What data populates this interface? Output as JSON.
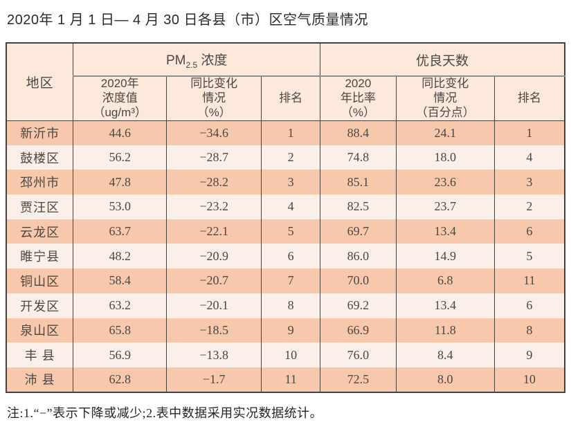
{
  "title": "2020年 1 月 1 日— 4 月 30 日各县（市）区空气质量情况",
  "note": "注:1.“−”表示下降或减少;2.表中数据采用实况数据统计。",
  "colors": {
    "row_odd": "#f7c8ac",
    "row_even": "#fbefe9",
    "header_bg": "#fce9dc",
    "border_dark": "#45403b",
    "border_gray": "#8d8d8d",
    "text_dark": "#4c4643"
  },
  "table": {
    "region_header": "地区",
    "group1": {
      "prefix": "PM",
      "sub": "2.5",
      "suffix": " 浓度"
    },
    "group2": "优良天数",
    "subheaders": {
      "pm_value": "2020年\n浓度值\n（ug/m³）",
      "pm_change": "同比变化\n情况\n（%）",
      "pm_rank": "排名",
      "days_ratio": "2020\n年比率\n（%）",
      "days_change": "同比变化\n情况\n（百分点）",
      "days_rank": "排名"
    },
    "rows": [
      {
        "region": "新沂市",
        "pm_value": "44.6",
        "pm_change": "−34.6",
        "pm_rank": "1",
        "days_ratio": "88.4",
        "days_change": "24.1",
        "days_rank": "1"
      },
      {
        "region": "鼓楼区",
        "pm_value": "56.2",
        "pm_change": "−28.7",
        "pm_rank": "2",
        "days_ratio": "74.8",
        "days_change": "18.0",
        "days_rank": "4"
      },
      {
        "region": "邳州市",
        "pm_value": "47.8",
        "pm_change": "−28.2",
        "pm_rank": "3",
        "days_ratio": "85.1",
        "days_change": "23.6",
        "days_rank": "3"
      },
      {
        "region": "贾汪区",
        "pm_value": "53.0",
        "pm_change": "−23.2",
        "pm_rank": "4",
        "days_ratio": "82.5",
        "days_change": "23.7",
        "days_rank": "2"
      },
      {
        "region": "云龙区",
        "pm_value": "63.7",
        "pm_change": "−22.1",
        "pm_rank": "5",
        "days_ratio": "69.7",
        "days_change": "13.4",
        "days_rank": "6"
      },
      {
        "region": "睢宁县",
        "pm_value": "48.2",
        "pm_change": "−20.9",
        "pm_rank": "6",
        "days_ratio": "86.0",
        "days_change": "14.9",
        "days_rank": "5"
      },
      {
        "region": "铜山区",
        "pm_value": "58.4",
        "pm_change": "−20.7",
        "pm_rank": "7",
        "days_ratio": "70.0",
        "days_change": "6.8",
        "days_rank": "11"
      },
      {
        "region": "开发区",
        "pm_value": "63.2",
        "pm_change": "−20.1",
        "pm_rank": "8",
        "days_ratio": "69.2",
        "days_change": "13.4",
        "days_rank": "6"
      },
      {
        "region": "泉山区",
        "pm_value": "65.8",
        "pm_change": "−18.5",
        "pm_rank": "9",
        "days_ratio": "66.9",
        "days_change": "11.8",
        "days_rank": "8"
      },
      {
        "region": "丰 县",
        "pm_value": "56.9",
        "pm_change": "−13.8",
        "pm_rank": "10",
        "days_ratio": "76.0",
        "days_change": "8.4",
        "days_rank": "9"
      },
      {
        "region": "沛 县",
        "pm_value": "62.8",
        "pm_change": "−1.7",
        "pm_rank": "11",
        "days_ratio": "72.5",
        "days_change": "8.0",
        "days_rank": "10"
      }
    ]
  },
  "chart_data": {
    "type": "table",
    "title": "2020年1月1日—4月30日各县（市）区空气质量情况",
    "columns": [
      "地区",
      "PM2.5浓度 2020年浓度值（ug/m³）",
      "PM2.5浓度 同比变化情况（%）",
      "PM2.5浓度 排名",
      "优良天数 2020年比率（%）",
      "优良天数 同比变化情况（百分点）",
      "优良天数 排名"
    ],
    "rows": [
      [
        "新沂市",
        44.6,
        -34.6,
        1,
        88.4,
        24.1,
        1
      ],
      [
        "鼓楼区",
        56.2,
        -28.7,
        2,
        74.8,
        18.0,
        4
      ],
      [
        "邳州市",
        47.8,
        -28.2,
        3,
        85.1,
        23.6,
        3
      ],
      [
        "贾汪区",
        53.0,
        -23.2,
        4,
        82.5,
        23.7,
        2
      ],
      [
        "云龙区",
        63.7,
        -22.1,
        5,
        69.7,
        13.4,
        6
      ],
      [
        "睢宁县",
        48.2,
        -20.9,
        6,
        86.0,
        14.9,
        5
      ],
      [
        "铜山区",
        58.4,
        -20.7,
        7,
        70.0,
        6.8,
        11
      ],
      [
        "开发区",
        63.2,
        -20.1,
        8,
        69.2,
        13.4,
        6
      ],
      [
        "泉山区",
        65.8,
        -18.5,
        9,
        66.9,
        11.8,
        8
      ],
      [
        "丰县",
        56.9,
        -13.8,
        10,
        76.0,
        8.4,
        9
      ],
      [
        "沛县",
        62.8,
        -1.7,
        11,
        72.5,
        8.0,
        10
      ]
    ],
    "footnote": "注:1.“−”表示下降或减少;2.表中数据采用实况数据统计。"
  }
}
